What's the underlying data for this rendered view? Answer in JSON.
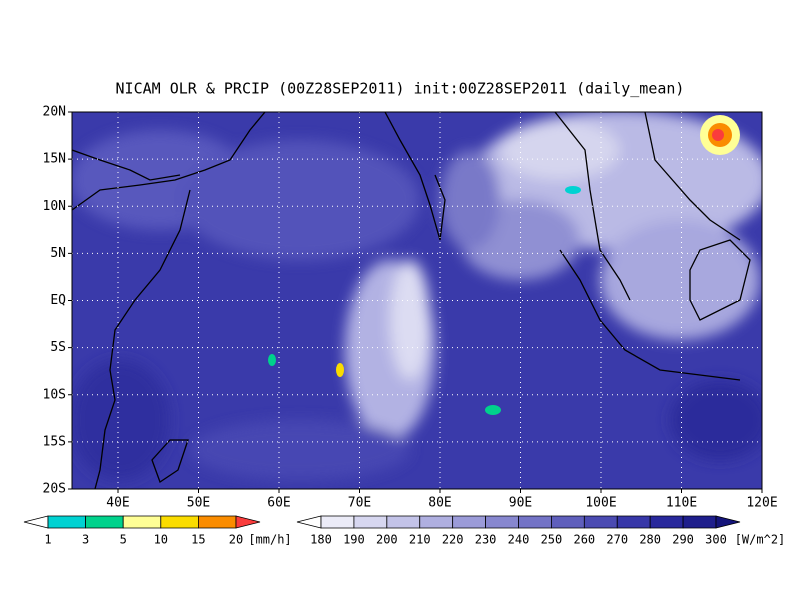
{
  "title": "NICAM OLR & PRCIP (00Z28SEP2011) init:00Z28SEP2011 (daily_mean)",
  "lat_labels": [
    "20N",
    "15N",
    "10N",
    "5N",
    "EQ",
    "5S",
    "10S",
    "15S",
    "20S"
  ],
  "lon_labels": [
    "40E",
    "50E",
    "60E",
    "70E",
    "80E",
    "90E",
    "100E",
    "110E",
    "120E"
  ],
  "precip_colorbar": {
    "labels": [
      1,
      3,
      5,
      10,
      15,
      20
    ],
    "unit": "[mm/h]",
    "colors": [
      "#ffffff",
      "#00d2d2",
      "#00d28c",
      "#ffff96",
      "#fadc00",
      "#fa8c00",
      "#fa3c3c"
    ]
  },
  "olr_colorbar": {
    "labels": [
      180,
      190,
      200,
      210,
      220,
      230,
      240,
      250,
      260,
      270,
      280,
      290,
      300
    ],
    "unit": "[W/m^2]",
    "colors": [
      "#ffffff",
      "#ebebf7",
      "#d7d7f0",
      "#c3c3e8",
      "#afafe0",
      "#9b9bd8",
      "#8787cf",
      "#7373c6",
      "#5f5fbc",
      "#4b4bb2",
      "#3737a8",
      "#28289c",
      "#1e1e8c",
      "#14147a"
    ]
  }
}
